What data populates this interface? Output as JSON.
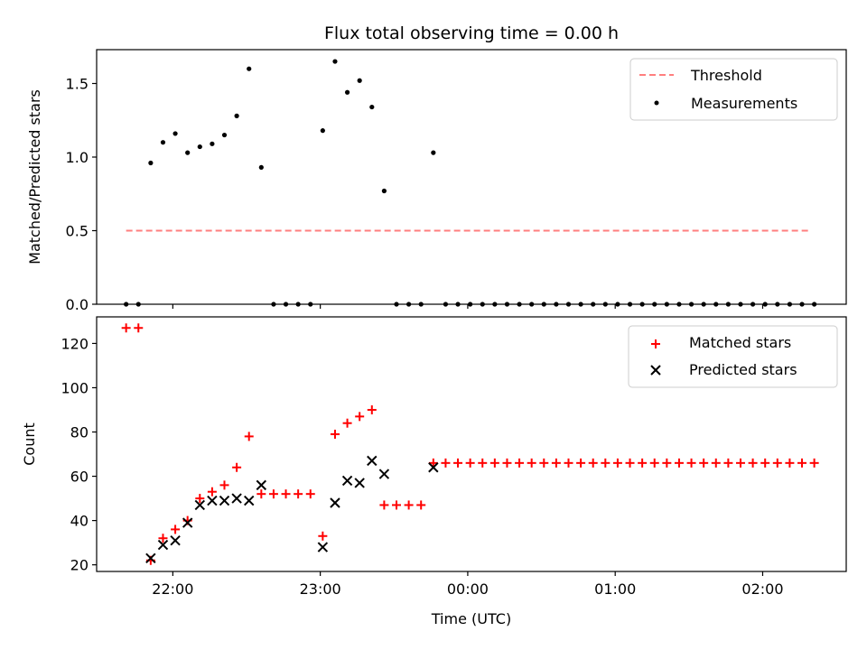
{
  "chart_data": [
    {
      "type": "scatter",
      "title": "Flux total observing time = 0.00 h",
      "xlabel": "",
      "ylabel": "Matched/Predicted stars",
      "xlim": [
        "21:29",
        "02:34"
      ],
      "ylim": [
        0,
        1.73
      ],
      "yticks": [
        "0.0",
        "0.5",
        "1.0",
        "1.5"
      ],
      "legend_position": "upper right",
      "legend": [
        "Threshold",
        "Measurements"
      ],
      "threshold": {
        "name": "Threshold",
        "y": 0.5,
        "x_range": [
          "21:41",
          "02:19"
        ],
        "color": "#ff7f7f",
        "style": "dashed"
      },
      "series": [
        {
          "name": "Measurements",
          "color": "#000000",
          "marker": "dot",
          "x": [
            "21:41",
            "21:46",
            "21:51",
            "21:56",
            "22:01",
            "22:06",
            "22:11",
            "22:16",
            "22:21",
            "22:26",
            "22:31",
            "22:36",
            "22:41",
            "22:46",
            "22:51",
            "22:56",
            "23:01",
            "23:06",
            "23:11",
            "23:16",
            "23:21",
            "23:26",
            "23:31",
            "23:36",
            "23:41",
            "23:46",
            "23:51",
            "23:56",
            "24:01",
            "24:06",
            "24:11",
            "24:16",
            "24:21",
            "24:26",
            "24:31",
            "24:36",
            "24:41",
            "24:46",
            "24:51",
            "24:56",
            "25:01",
            "25:06",
            "25:11",
            "25:16",
            "25:21",
            "25:26",
            "25:31",
            "25:36",
            "25:41",
            "25:46",
            "25:51",
            "25:56",
            "26:01",
            "26:06",
            "26:11",
            "26:16",
            "26:21"
          ],
          "y": [
            0.0,
            0.0,
            0.96,
            1.1,
            1.16,
            1.03,
            1.07,
            1.09,
            1.15,
            1.28,
            1.6,
            0.93,
            0.0,
            0.0,
            0.0,
            0.0,
            1.18,
            1.65,
            1.44,
            1.52,
            1.34,
            0.77,
            0.0,
            0.0,
            0.0,
            1.03,
            0.0,
            0.0,
            0.0,
            0.0,
            0.0,
            0.0,
            0.0,
            0.0,
            0.0,
            0.0,
            0.0,
            0.0,
            0.0,
            0.0,
            0.0,
            0.0,
            0.0,
            0.0,
            0.0,
            0.0,
            0.0,
            0.0,
            0.0,
            0.0,
            0.0,
            0.0,
            0.0,
            0.0,
            0.0,
            0.0,
            0.0
          ]
        }
      ]
    },
    {
      "type": "scatter",
      "title": "",
      "xlabel": "Time (UTC)",
      "ylabel": "Count",
      "xlim": [
        "21:29",
        "02:34"
      ],
      "ylim": [
        17,
        132
      ],
      "yticks": [
        "20",
        "40",
        "60",
        "80",
        "100",
        "120"
      ],
      "xticks": [
        "22:00",
        "23:00",
        "00:00",
        "01:00",
        "02:00"
      ],
      "legend_position": "upper right",
      "legend": [
        "Matched stars",
        "Predicted stars"
      ],
      "series": [
        {
          "name": "Matched stars",
          "color": "#ff0000",
          "marker": "plus",
          "x": [
            "21:41",
            "21:46",
            "21:51",
            "21:56",
            "22:01",
            "22:06",
            "22:11",
            "22:16",
            "22:21",
            "22:26",
            "22:31",
            "22:36",
            "22:41",
            "22:46",
            "22:51",
            "22:56",
            "23:01",
            "23:06",
            "23:11",
            "23:16",
            "23:21",
            "23:26",
            "23:31",
            "23:36",
            "23:41",
            "23:46",
            "23:51",
            "23:56",
            "24:01",
            "24:06",
            "24:11",
            "24:16",
            "24:21",
            "24:26",
            "24:31",
            "24:36",
            "24:41",
            "24:46",
            "24:51",
            "24:56",
            "25:01",
            "25:06",
            "25:11",
            "25:16",
            "25:21",
            "25:26",
            "25:31",
            "25:36",
            "25:41",
            "25:46",
            "25:51",
            "25:56",
            "26:01",
            "26:06",
            "26:11",
            "26:16",
            "26:21"
          ],
          "y": [
            127,
            127,
            22,
            32,
            36,
            40,
            50,
            53,
            56,
            64,
            78,
            52,
            52,
            52,
            52,
            52,
            33,
            79,
            84,
            87,
            90,
            47,
            47,
            47,
            47,
            66,
            66,
            66,
            66,
            66,
            66,
            66,
            66,
            66,
            66,
            66,
            66,
            66,
            66,
            66,
            66,
            66,
            66,
            66,
            66,
            66,
            66,
            66,
            66,
            66,
            66,
            66,
            66,
            66,
            66,
            66,
            66
          ]
        },
        {
          "name": "Predicted stars",
          "color": "#000000",
          "marker": "x",
          "x": [
            "21:51",
            "21:56",
            "22:01",
            "22:06",
            "22:11",
            "22:16",
            "22:21",
            "22:26",
            "22:31",
            "22:36",
            "23:01",
            "23:06",
            "23:11",
            "23:16",
            "23:21",
            "23:26",
            "23:46"
          ],
          "y": [
            23,
            29,
            31,
            39,
            47,
            49,
            49,
            50,
            49,
            56,
            28,
            48,
            58,
            57,
            67,
            61,
            64
          ]
        }
      ]
    }
  ]
}
